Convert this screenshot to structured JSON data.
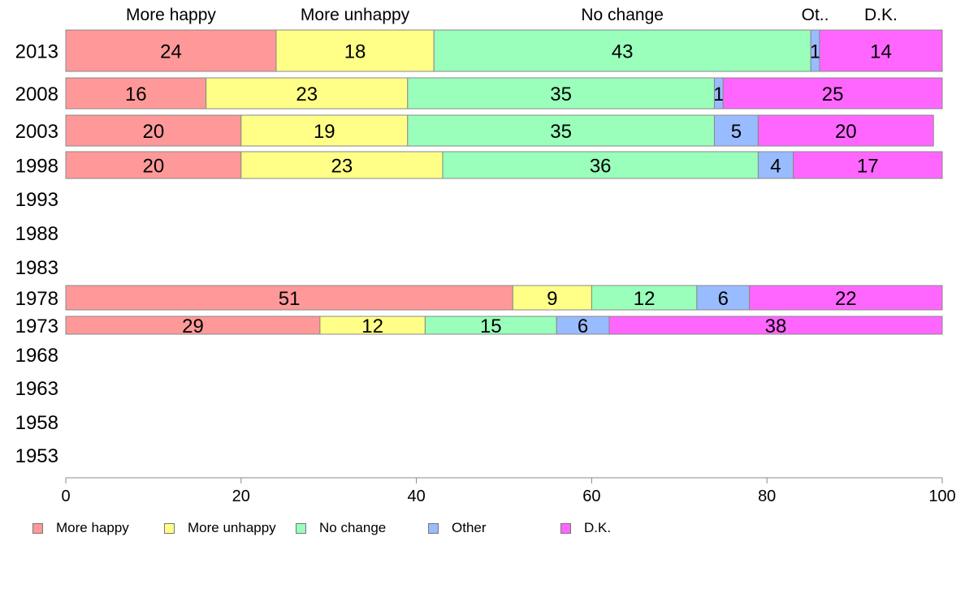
{
  "chart_data": {
    "type": "bar",
    "orientation": "horizontal",
    "stacked": true,
    "categories": [
      "2013",
      "2008",
      "2003",
      "1998",
      "1993",
      "1988",
      "1983",
      "1978",
      "1973",
      "1968",
      "1963",
      "1958",
      "1953"
    ],
    "series": [
      {
        "name": "More happy",
        "color": "#ff9999",
        "values": [
          24,
          16,
          20,
          20,
          null,
          null,
          null,
          51,
          29,
          null,
          null,
          null,
          null
        ]
      },
      {
        "name": "More unhappy",
        "color": "#ffff88",
        "values": [
          18,
          23,
          19,
          23,
          null,
          null,
          null,
          9,
          12,
          null,
          null,
          null,
          null
        ]
      },
      {
        "name": "No change",
        "color": "#99ffbb",
        "values": [
          43,
          35,
          35,
          36,
          null,
          null,
          null,
          12,
          15,
          null,
          null,
          null,
          null
        ]
      },
      {
        "name": "Other",
        "color": "#99bbff",
        "values": [
          1,
          1,
          5,
          4,
          null,
          null,
          null,
          6,
          6,
          null,
          null,
          null,
          null
        ]
      },
      {
        "name": "D.K.",
        "color": "#ff66ff",
        "values": [
          14,
          25,
          20,
          17,
          null,
          null,
          null,
          22,
          38,
          null,
          null,
          null,
          null
        ]
      }
    ],
    "top_labels": [
      "More happy",
      "More unhappy",
      "No change",
      "Ot..",
      "D.K."
    ],
    "xlim": [
      0,
      100
    ],
    "xticks": [
      0,
      20,
      40,
      60,
      80,
      100
    ],
    "legend_position": "bottom"
  }
}
